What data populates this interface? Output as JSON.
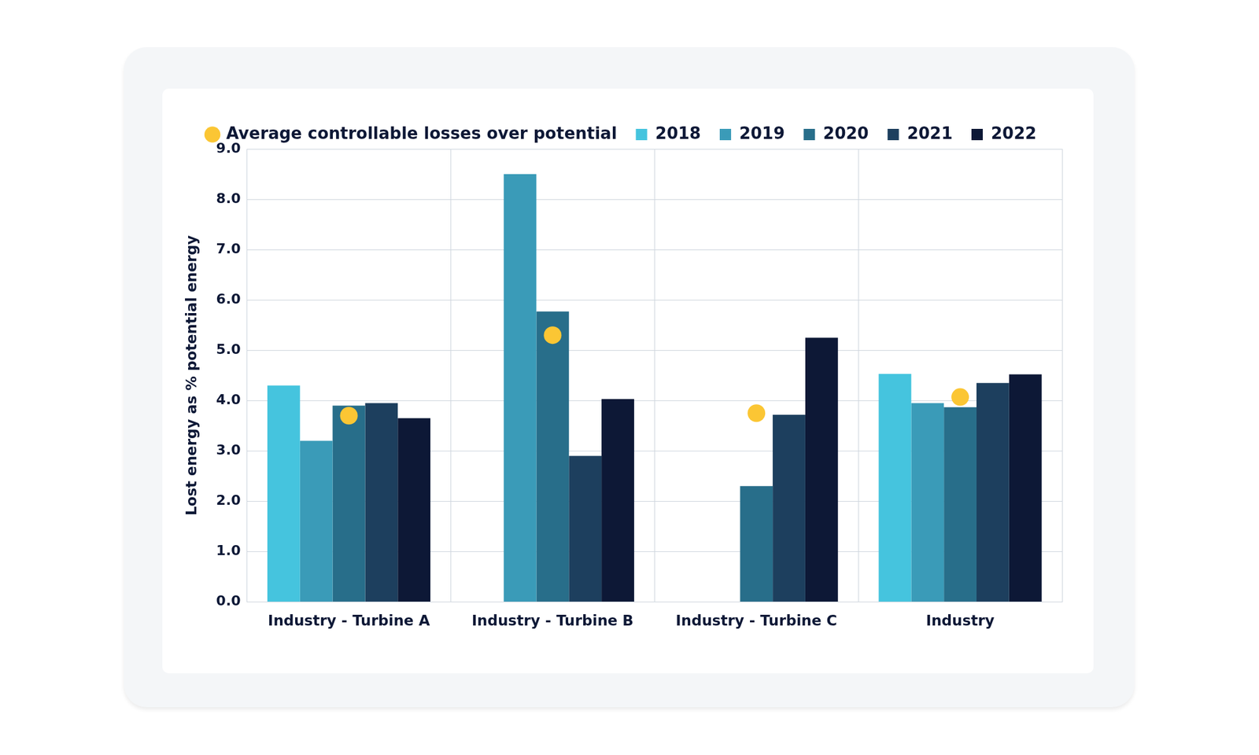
{
  "chart_data": {
    "type": "bar",
    "categories": [
      "Industry - Turbine A",
      "Industry - Turbine B",
      "Industry - Turbine C",
      "Industry"
    ],
    "series": [
      {
        "name": "2018",
        "color": "#45c4de",
        "type": "bar",
        "values": [
          4.3,
          null,
          null,
          4.53
        ]
      },
      {
        "name": "2019",
        "color": "#3a9bb8",
        "type": "bar",
        "values": [
          3.2,
          8.5,
          null,
          3.95
        ]
      },
      {
        "name": "2020",
        "color": "#286e8a",
        "type": "bar",
        "values": [
          3.9,
          5.77,
          2.3,
          3.87
        ]
      },
      {
        "name": "2021",
        "color": "#1d3f5e",
        "type": "bar",
        "values": [
          3.95,
          2.9,
          3.72,
          4.35
        ]
      },
      {
        "name": "2022",
        "color": "#0d1836",
        "type": "bar",
        "values": [
          3.65,
          4.03,
          5.25,
          4.52
        ]
      },
      {
        "name": "Average controllable losses over potential",
        "color": "#fbc634",
        "type": "scatter",
        "marker": "circle",
        "values": [
          3.7,
          5.3,
          3.75,
          4.07
        ]
      }
    ],
    "y_label": "Lost energy as % potential energy",
    "ylim": [
      0,
      9
    ],
    "yticks": [
      {
        "value": 0,
        "label": "0.0"
      },
      {
        "value": 1,
        "label": "1.0"
      },
      {
        "value": 2,
        "label": "2.0"
      },
      {
        "value": 3,
        "label": "3.0"
      },
      {
        "value": 4,
        "label": "4.0"
      },
      {
        "value": 5,
        "label": "5.0"
      },
      {
        "value": 6,
        "label": "6.0"
      },
      {
        "value": 7,
        "label": "7.0"
      },
      {
        "value": 8,
        "label": "8.0"
      },
      {
        "value": 9,
        "label": "9.0"
      }
    ],
    "grid": true,
    "legend": "top"
  }
}
